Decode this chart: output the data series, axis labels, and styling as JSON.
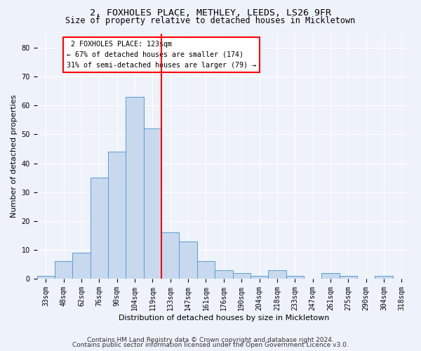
{
  "title_line1": "2, FOXHOLES PLACE, METHLEY, LEEDS, LS26 9FR",
  "title_line2": "Size of property relative to detached houses in Mickletown",
  "xlabel": "Distribution of detached houses by size in Mickletown",
  "ylabel": "Number of detached properties",
  "bar_color": "#c8d9ee",
  "bar_edge_color": "#5b9bd5",
  "categories": [
    "33sqm",
    "48sqm",
    "62sqm",
    "76sqm",
    "90sqm",
    "104sqm",
    "119sqm",
    "133sqm",
    "147sqm",
    "161sqm",
    "176sqm",
    "190sqm",
    "204sqm",
    "218sqm",
    "233sqm",
    "247sqm",
    "261sqm",
    "275sqm",
    "290sqm",
    "304sqm",
    "318sqm"
  ],
  "values": [
    1,
    6,
    9,
    35,
    44,
    63,
    52,
    16,
    13,
    6,
    3,
    2,
    1,
    3,
    1,
    0,
    2,
    1,
    0,
    1,
    0
  ],
  "ylim": [
    0,
    85
  ],
  "yticks": [
    0,
    10,
    20,
    30,
    40,
    50,
    60,
    70,
    80
  ],
  "property_label": "2 FOXHOLES PLACE: 123sqm",
  "pct_smaller": "67% of detached houses are smaller (174)",
  "pct_larger": "31% of semi-detached houses are larger (79)",
  "vline_bin_index": 6,
  "footer1": "Contains HM Land Registry data © Crown copyright and database right 2024.",
  "footer2": "Contains public sector information licensed under the Open Government Licence v3.0.",
  "background_color": "#eef2fa",
  "grid_color": "#ffffff",
  "title_fontsize": 9.5,
  "subtitle_fontsize": 8.5,
  "tick_fontsize": 7,
  "label_fontsize": 8,
  "footer_fontsize": 6.5
}
